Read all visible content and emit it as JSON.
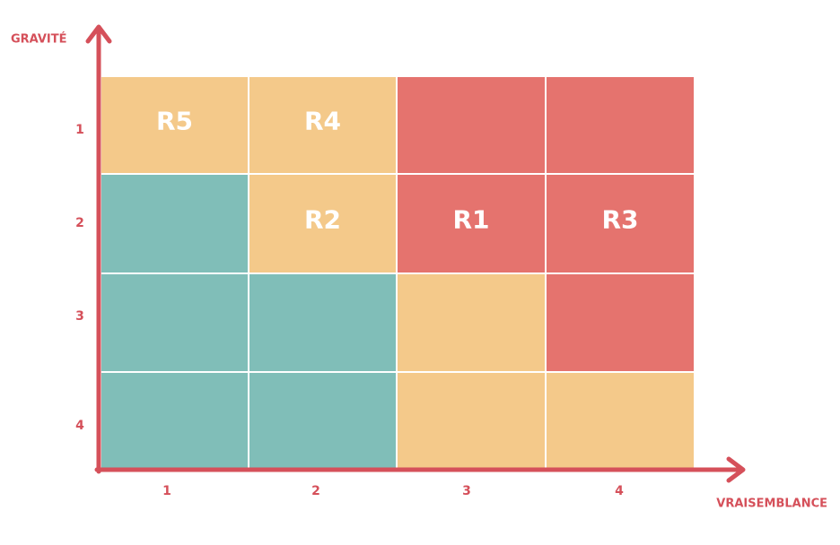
{
  "y_axis": {
    "title": "GRAVITÉ",
    "labels": [
      "1",
      "2",
      "3",
      "4"
    ]
  },
  "x_axis": {
    "title": "VRAISEMBLANCE",
    "labels": [
      "1",
      "2",
      "3",
      "4"
    ]
  },
  "matrix": {
    "rows": [
      [
        {
          "color": "#f4c98a",
          "label": "R5"
        },
        {
          "color": "#f4c98a",
          "label": "R4"
        },
        {
          "color": "#e5736e"
        },
        {
          "color": "#e5736e"
        }
      ],
      [
        {
          "color": "#80beb8"
        },
        {
          "color": "#f4c98a",
          "label": "R2"
        },
        {
          "color": "#e5736e",
          "label": "R1"
        },
        {
          "color": "#e5736e",
          "label": "R3"
        }
      ],
      [
        {
          "color": "#80beb8"
        },
        {
          "color": "#80beb8"
        },
        {
          "color": "#f4c98a"
        },
        {
          "color": "#e5736e"
        }
      ],
      [
        {
          "color": "#80beb8"
        },
        {
          "color": "#80beb8"
        },
        {
          "color": "#f4c98a"
        },
        {
          "color": "#f4c98a"
        }
      ]
    ]
  }
}
